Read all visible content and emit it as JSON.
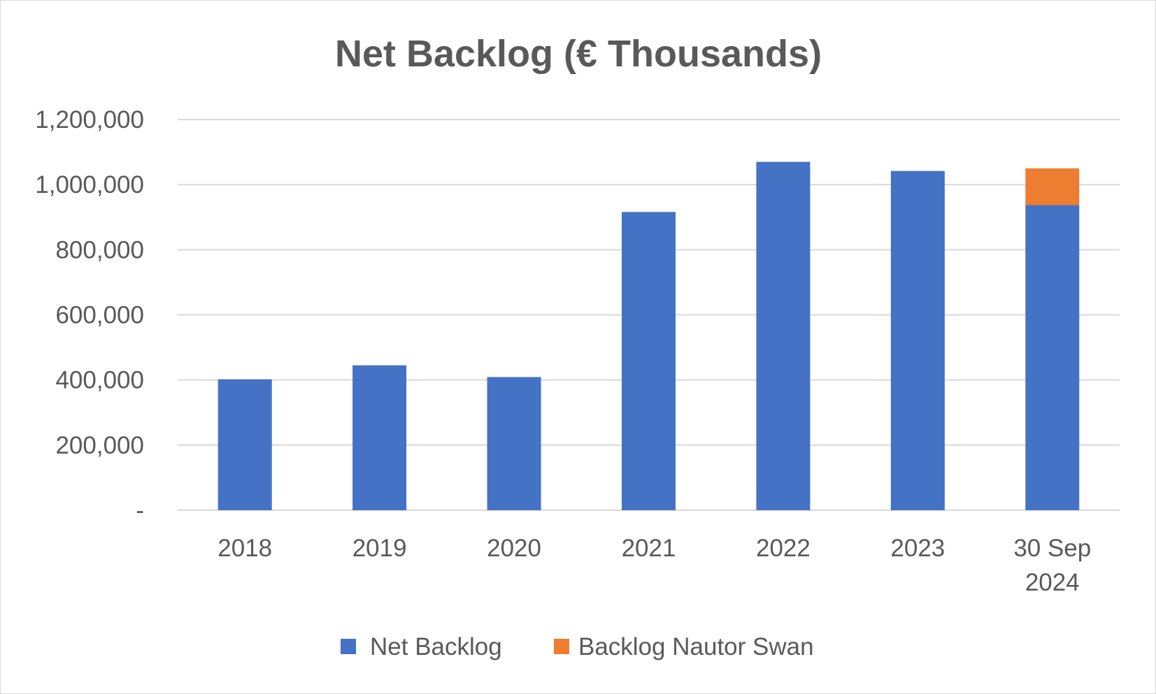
{
  "chart_data": {
    "type": "bar",
    "stacked": true,
    "title": "Net Backlog (€ Thousands)",
    "xlabel": "",
    "ylabel": "",
    "categories": [
      "2018",
      "2019",
      "2020",
      "2021",
      "2022",
      "2023",
      "30 Sep 2024"
    ],
    "series": [
      {
        "name": "Net Backlog",
        "color": "#4472c4",
        "values": [
          402000,
          445000,
          409000,
          916000,
          1070000,
          1042000,
          937000
        ]
      },
      {
        "name": "Backlog Nautor Swan",
        "color": "#ed7d31",
        "values": [
          null,
          null,
          null,
          null,
          null,
          null,
          113000
        ]
      }
    ],
    "ylim": [
      0,
      1200000
    ],
    "yticks": [
      {
        "value": 0,
        "label": "-"
      },
      {
        "value": 200000,
        "label": "200,000"
      },
      {
        "value": 400000,
        "label": "400,000"
      },
      {
        "value": 600000,
        "label": "600,000"
      },
      {
        "value": 800000,
        "label": "800,000"
      },
      {
        "value": 1000000,
        "label": "1,000,000"
      },
      {
        "value": 1200000,
        "label": "1,200,000"
      }
    ],
    "grid": true,
    "legend_position": "bottom"
  }
}
